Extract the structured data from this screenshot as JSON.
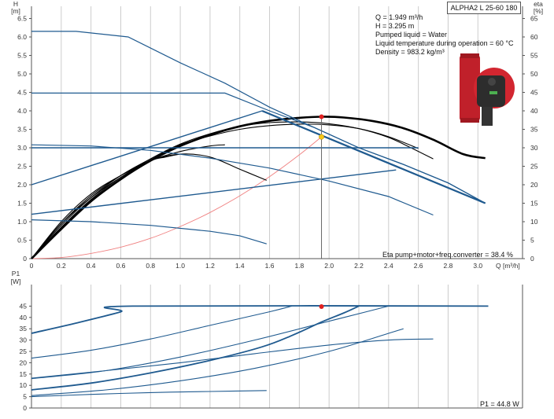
{
  "model": "ALPHA2 L 25-60 180",
  "info_lines": [
    "Q = 1.949 m³/h",
    "H = 3.295 m",
    "Pumped liquid = Water",
    "Liquid temperature during operation = 60 °C",
    "Density = 983.2 kg/m³"
  ],
  "eta_label": "Eta pump+motor+freq.converter = 38.4 %",
  "p1_label": "P1 = 44.8 W",
  "colors": {
    "curve_blue": "#1f5a8f",
    "curve_black": "#000000",
    "system_curve": "#f08080",
    "duty_red": "#e02020",
    "duty_yellow": "#f5c518",
    "grid": "#cccccc"
  },
  "chart_data": [
    {
      "type": "line",
      "name": "head",
      "ylabel_top": "H",
      "ylabel_unit": "[m]",
      "y2label_top": "eta",
      "y2label_unit": "[%]",
      "xlabel": "Q [m³/h]",
      "xlim": [
        0,
        3.3
      ],
      "ylim": [
        0,
        7
      ],
      "y2lim": [
        0,
        70
      ],
      "xticks": [
        "0",
        "0.2",
        "0.4",
        "0.6",
        "0.8",
        "1.0",
        "1.2",
        "1.4",
        "1.6",
        "1.8",
        "2.0",
        "2.2",
        "2.4",
        "2.6",
        "2.8",
        "3.0"
      ],
      "yticks": [
        "0",
        "0.5",
        "1.0",
        "1.5",
        "2.0",
        "2.5",
        "3.0",
        "3.5",
        "4.0",
        "4.5",
        "5.0",
        "5.5",
        "6.0",
        "6.5"
      ],
      "y2ticks": [
        "0",
        "5",
        "10",
        "15",
        "20",
        "25",
        "30",
        "35",
        "40",
        "45",
        "50",
        "55",
        "60",
        "65"
      ],
      "grid": "vertical",
      "head_curves": [
        [
          [
            0,
            6.15
          ],
          [
            0.3,
            6.15
          ],
          [
            0.65,
            6.0
          ],
          [
            1.0,
            5.3
          ],
          [
            1.3,
            4.75
          ],
          [
            1.6,
            4.1
          ],
          [
            1.9,
            3.55
          ],
          [
            2.2,
            3.0
          ],
          [
            2.5,
            2.55
          ],
          [
            2.8,
            2.05
          ],
          [
            3.05,
            1.5
          ]
        ],
        [
          [
            0,
            4.48
          ],
          [
            1.3,
            4.48
          ],
          [
            1.6,
            4.0
          ],
          [
            1.9,
            3.55
          ],
          [
            2.2,
            3.0
          ],
          [
            2.5,
            2.55
          ],
          [
            2.8,
            2.05
          ],
          [
            3.05,
            1.5
          ]
        ],
        [
          [
            0,
            3.08
          ],
          [
            0.4,
            3.05
          ],
          [
            0.8,
            2.93
          ],
          [
            1.2,
            2.72
          ],
          [
            1.6,
            2.45
          ],
          [
            2.0,
            2.1
          ],
          [
            2.4,
            1.68
          ],
          [
            2.7,
            1.18
          ]
        ],
        [
          [
            0,
            1.05
          ],
          [
            0.4,
            1.0
          ],
          [
            0.8,
            0.9
          ],
          [
            1.2,
            0.74
          ],
          [
            1.4,
            0.62
          ],
          [
            1.58,
            0.4
          ]
        ]
      ],
      "prop_curves": [
        [
          [
            0,
            2.0
          ],
          [
            1.55,
            4.0
          ]
        ],
        [
          [
            0,
            1.2
          ],
          [
            2.45,
            2.4
          ]
        ],
        [
          [
            0,
            3.0
          ],
          [
            2.6,
            3.0
          ]
        ]
      ],
      "eta_curves": [
        [
          [
            0,
            0
          ],
          [
            0.2,
            8
          ],
          [
            0.4,
            15.5
          ],
          [
            0.6,
            21.5
          ],
          [
            0.8,
            26.5
          ],
          [
            1.0,
            30.5
          ],
          [
            1.2,
            33.5
          ],
          [
            1.4,
            35.8
          ],
          [
            1.6,
            37.3
          ],
          [
            1.8,
            38.1
          ],
          [
            1.949,
            38.4
          ],
          [
            2.1,
            38.2
          ],
          [
            2.3,
            37.2
          ],
          [
            2.5,
            35.3
          ],
          [
            2.7,
            32.2
          ],
          [
            2.9,
            28.3
          ],
          [
            3.05,
            27.2
          ]
        ],
        [
          [
            0,
            0
          ],
          [
            0.2,
            8.5
          ],
          [
            0.4,
            16
          ],
          [
            0.6,
            22
          ],
          [
            0.8,
            27
          ],
          [
            1.0,
            31
          ],
          [
            1.2,
            33.8
          ],
          [
            1.4,
            35.8
          ],
          [
            1.6,
            36.8
          ],
          [
            1.8,
            37
          ],
          [
            2.0,
            36.5
          ],
          [
            2.2,
            35.2
          ],
          [
            2.4,
            32.8
          ],
          [
            2.55,
            30
          ],
          [
            2.7,
            27
          ]
        ],
        [
          [
            0,
            0
          ],
          [
            0.2,
            9
          ],
          [
            0.4,
            16.5
          ],
          [
            0.6,
            22.5
          ],
          [
            0.8,
            27
          ],
          [
            1.0,
            30.8
          ],
          [
            1.2,
            33.2
          ],
          [
            1.4,
            35
          ],
          [
            1.6,
            36
          ],
          [
            1.8,
            36.4
          ],
          [
            2.0,
            36.2
          ],
          [
            2.2,
            35.2
          ],
          [
            2.4,
            33
          ],
          [
            2.6,
            29.8
          ]
        ],
        [
          [
            0,
            0
          ],
          [
            0.2,
            9.5
          ],
          [
            0.4,
            17
          ],
          [
            0.6,
            22.5
          ],
          [
            0.8,
            26.5
          ],
          [
            1.0,
            29
          ],
          [
            1.2,
            30.5
          ],
          [
            1.3,
            30.8
          ]
        ],
        [
          [
            0,
            0
          ],
          [
            0.2,
            10
          ],
          [
            0.4,
            17.5
          ],
          [
            0.6,
            22.5
          ],
          [
            0.8,
            26.5
          ],
          [
            0.9,
            27.5
          ],
          [
            1.0,
            28.3
          ]
        ],
        [
          [
            0,
            0
          ],
          [
            0.2,
            9.5
          ],
          [
            0.4,
            16.5
          ],
          [
            0.6,
            22
          ],
          [
            0.8,
            26.5
          ],
          [
            1.0,
            28.3
          ],
          [
            1.2,
            27.5
          ],
          [
            1.4,
            24.2
          ],
          [
            1.58,
            21.2
          ]
        ]
      ],
      "system_curve": [
        [
          0,
          0
        ],
        [
          0.2,
          0.03
        ],
        [
          0.4,
          0.14
        ],
        [
          0.6,
          0.31
        ],
        [
          0.8,
          0.55
        ],
        [
          1.0,
          0.87
        ],
        [
          1.2,
          1.25
        ],
        [
          1.4,
          1.7
        ],
        [
          1.6,
          2.22
        ],
        [
          1.8,
          2.81
        ],
        [
          1.949,
          3.295
        ]
      ],
      "duty_head_point": [
        1.949,
        3.295
      ],
      "duty_eta_point": [
        1.949,
        38.4
      ]
    },
    {
      "type": "line",
      "name": "power",
      "ylabel_top": "P1",
      "ylabel_unit": "[W]",
      "xlim": [
        0,
        3.3
      ],
      "ylim": [
        0,
        50
      ],
      "yticks": [
        "0",
        "5",
        "10",
        "15",
        "20",
        "25",
        "30",
        "35",
        "40",
        "45"
      ],
      "grid": "vertical",
      "power_curves": [
        [
          [
            0,
            33
          ],
          [
            0.3,
            37.5
          ],
          [
            0.6,
            42.5
          ],
          [
            0.68,
            45
          ],
          [
            3.07,
            45
          ]
        ],
        [
          [
            0,
            22
          ],
          [
            0.4,
            25.5
          ],
          [
            0.8,
            30.5
          ],
          [
            1.2,
            36.5
          ],
          [
            1.6,
            42.5
          ],
          [
            1.75,
            45
          ]
        ],
        [
          [
            0,
            13
          ],
          [
            0.5,
            16.5
          ],
          [
            1.0,
            22.5
          ],
          [
            1.5,
            30
          ],
          [
            1.95,
            37.5
          ],
          [
            2.1,
            40
          ],
          [
            2.4,
            45
          ]
        ],
        [
          [
            0,
            8
          ],
          [
            0.4,
            11
          ],
          [
            0.8,
            15.5
          ],
          [
            1.2,
            21
          ],
          [
            1.55,
            27
          ],
          [
            1.75,
            32
          ],
          [
            1.95,
            38
          ],
          [
            2.1,
            42
          ],
          [
            2.2,
            45
          ]
        ],
        [
          [
            0,
            13.2
          ],
          [
            0.5,
            16.5
          ],
          [
            1.0,
            20
          ],
          [
            1.5,
            24
          ],
          [
            2.0,
            27.8
          ],
          [
            2.4,
            30
          ],
          [
            2.7,
            30.5
          ]
        ],
        [
          [
            0,
            5
          ],
          [
            0.4,
            6
          ],
          [
            0.8,
            6.8
          ],
          [
            1.2,
            7.3
          ],
          [
            1.58,
            7.7
          ]
        ],
        [
          [
            0,
            5.5
          ],
          [
            0.5,
            8
          ],
          [
            1.0,
            12
          ],
          [
            1.5,
            17.5
          ],
          [
            2.0,
            25
          ],
          [
            2.4,
            33
          ],
          [
            2.5,
            35
          ]
        ]
      ],
      "duty_power_point": [
        1.949,
        44.8
      ]
    }
  ]
}
